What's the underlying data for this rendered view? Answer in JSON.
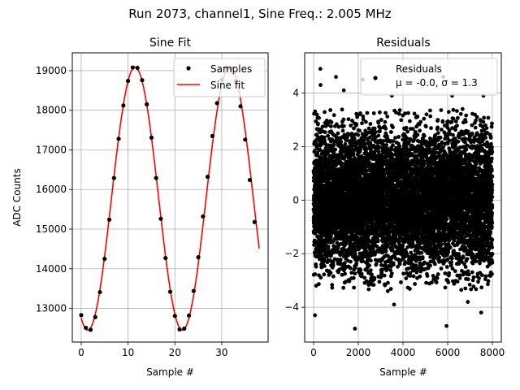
{
  "figure": {
    "suptitle": "Run 2073, channel1, Sine Freq.: 2.005 MHz"
  },
  "chart_data": [
    {
      "type": "line",
      "title": "Sine Fit",
      "xlabel": "Sample #",
      "ylabel": "ADC Counts",
      "xlim": [
        -1.9,
        39.9
      ],
      "ylim": [
        12150,
        19450
      ],
      "xticks": [
        0,
        10,
        20,
        30
      ],
      "yticks": [
        13000,
        14000,
        15000,
        16000,
        17000,
        18000,
        19000
      ],
      "grid": true,
      "legend_position": "top-right",
      "series": [
        {
          "name": "Samples",
          "kind": "scatter",
          "color": "#000000",
          "x": [
            0,
            1,
            2,
            3,
            4,
            5,
            6,
            7,
            8,
            9,
            10,
            11,
            12,
            13,
            14,
            15,
            16,
            17,
            18,
            19,
            20,
            21,
            22,
            23,
            24,
            25,
            26,
            27,
            28,
            29,
            30,
            31,
            32,
            33,
            34,
            35,
            36,
            37
          ],
          "y": [
            12830,
            12510,
            12460,
            12780,
            13410,
            14250,
            15240,
            16290,
            17280,
            18120,
            18740,
            19080,
            19070,
            18760,
            18150,
            17310,
            16290,
            15260,
            14270,
            13420,
            12810,
            12470,
            12490,
            12820,
            13440,
            14290,
            15320,
            16320,
            17350,
            18180,
            18770,
            19080,
            19060,
            18740,
            18100,
            17260,
            16240,
            15180
          ]
        },
        {
          "name": "Sine fit",
          "kind": "line",
          "color": "#ff0000",
          "offset": 15770,
          "amplitude": 3320,
          "period": 20.2,
          "peak_at": 11.5,
          "x_range": [
            0,
            38
          ]
        }
      ]
    },
    {
      "type": "scatter",
      "title": "Residuals",
      "xlabel": "Sample #",
      "ylabel": "",
      "xlim": [
        -400,
        8400
      ],
      "ylim": [
        -5.3,
        5.5
      ],
      "xticks": [
        0,
        2000,
        4000,
        6000,
        8000
      ],
      "yticks": [
        -4,
        -2,
        0,
        2,
        4
      ],
      "grid": true,
      "legend_position": "top-right",
      "series": [
        {
          "name": "Residuals",
          "color": "#000000",
          "n_points": 8000,
          "x_range": [
            0,
            7999
          ],
          "mean": 0.0,
          "sigma": 1.3,
          "outliers": [
            {
              "x": 300,
              "y": 4.9
            },
            {
              "x": 310,
              "y": 4.3
            },
            {
              "x": 1000,
              "y": 4.6
            },
            {
              "x": 1350,
              "y": 4.1
            },
            {
              "x": 2200,
              "y": 4.5
            },
            {
              "x": 3500,
              "y": 3.9
            },
            {
              "x": 5800,
              "y": 4.6
            },
            {
              "x": 6200,
              "y": 3.9
            },
            {
              "x": 7600,
              "y": 3.9
            },
            {
              "x": 60,
              "y": -4.3
            },
            {
              "x": 1850,
              "y": -4.8
            },
            {
              "x": 5950,
              "y": -4.7
            },
            {
              "x": 7500,
              "y": -4.2
            },
            {
              "x": 6900,
              "y": -3.8
            },
            {
              "x": 3600,
              "y": -3.9
            }
          ]
        }
      ],
      "legend_stats": "μ = -0.0, σ = 1.3"
    }
  ]
}
